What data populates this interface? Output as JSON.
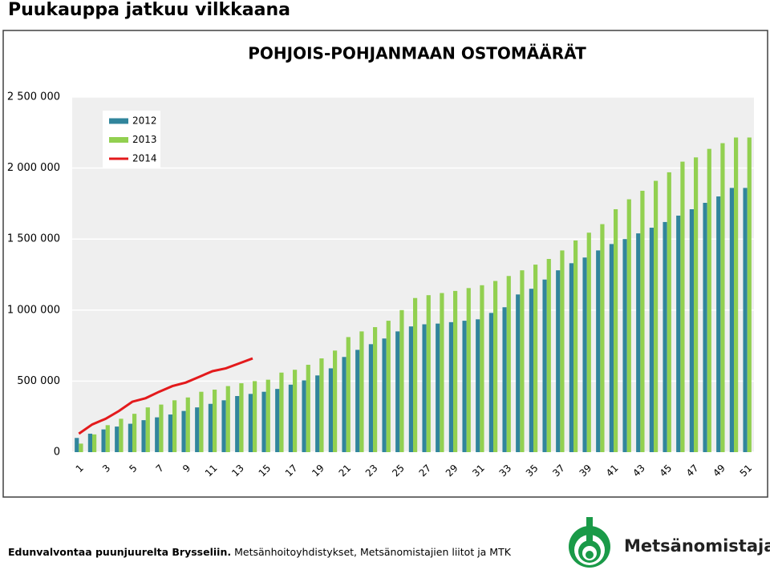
{
  "header": {
    "title": "Puukauppa jatkuu vilkkaana"
  },
  "footer": {
    "bold_text": "Edunvalvontaa puunjuurelta Brysseliin.",
    "text": "Metsänhoitoyhdistykset, Metsänomistajien liitot ja MTK",
    "logo_text": "Metsänomistajat"
  },
  "chart_data": {
    "type": "bar",
    "title": "POHJOIS-POHJANMAAN OSTOMÄÄRÄT",
    "categories": [
      "1",
      null,
      "3",
      null,
      "5",
      null,
      "7",
      null,
      "9",
      null,
      "11",
      null,
      "13",
      null,
      "15",
      null,
      "17",
      null,
      "19",
      null,
      "21",
      null,
      "23",
      null,
      "25",
      null,
      "27",
      null,
      "29",
      null,
      "31",
      null,
      "33",
      null,
      "35",
      null,
      "37",
      null,
      "39",
      null,
      "41",
      null,
      "43",
      null,
      "45",
      null,
      "47",
      null,
      "49",
      null,
      "51"
    ],
    "series": [
      {
        "name": "2012",
        "color": "#31859c",
        "type": "bar",
        "values": [
          100000,
          130000,
          160000,
          180000,
          200000,
          225000,
          245000,
          265000,
          290000,
          315000,
          340000,
          365000,
          395000,
          410000,
          425000,
          445000,
          475000,
          505000,
          540000,
          590000,
          670000,
          720000,
          760000,
          800000,
          850000,
          885000,
          900000,
          905000,
          915000,
          925000,
          935000,
          980000,
          1020000,
          1110000,
          1150000,
          1215000,
          1280000,
          1330000,
          1370000,
          1420000,
          1465000,
          1500000,
          1540000,
          1580000,
          1620000,
          1665000,
          1710000,
          1755000,
          1800000,
          1860000,
          1860000
        ]
      },
      {
        "name": "2013",
        "color": "#92d050",
        "type": "bar",
        "values": [
          60000,
          125000,
          190000,
          235000,
          270000,
          315000,
          335000,
          365000,
          385000,
          425000,
          440000,
          465000,
          485000,
          500000,
          510000,
          560000,
          580000,
          615000,
          660000,
          715000,
          810000,
          850000,
          880000,
          925000,
          1000000,
          1085000,
          1105000,
          1120000,
          1135000,
          1155000,
          1175000,
          1205000,
          1240000,
          1280000,
          1320000,
          1360000,
          1420000,
          1490000,
          1545000,
          1605000,
          1710000,
          1780000,
          1840000,
          1910000,
          1970000,
          2045000,
          2075000,
          2135000,
          2175000,
          2215000,
          2215000
        ]
      },
      {
        "name": "2014",
        "color": "#e31a1c",
        "type": "line",
        "values": [
          130000,
          195000,
          235000,
          290000,
          355000,
          380000,
          425000,
          465000,
          490000,
          530000,
          570000,
          590000,
          625000,
          660000,
          null,
          null,
          null,
          null,
          null,
          null,
          null,
          null,
          null,
          null,
          null,
          null,
          null,
          null,
          null,
          null,
          null,
          null,
          null,
          null,
          null,
          null,
          null,
          null,
          null,
          null,
          null,
          null,
          null,
          null,
          null,
          null,
          null,
          null,
          null,
          null,
          null
        ]
      }
    ],
    "ylim": [
      0,
      2500000
    ],
    "yticks": [
      0,
      {
        "value": 500000,
        "label": "500 000"
      },
      {
        "value": 1000000,
        "label": "1 000 000"
      },
      {
        "value": 1500000,
        "label": "1 500 000"
      },
      {
        "value": 2000000,
        "label": "2 000 000"
      },
      {
        "value": 2500000,
        "label": "2 500 000"
      }
    ],
    "grid": true,
    "legend": "upper left"
  }
}
